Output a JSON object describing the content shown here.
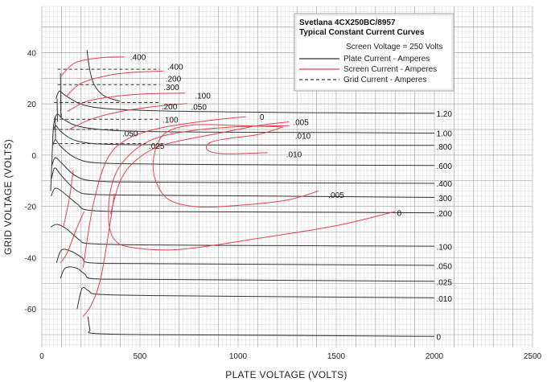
{
  "chart_data": {
    "type": "line",
    "title": "Svetlana 4CX250BC/8957",
    "subtitle": "Typical Constant Current Curves",
    "xlabel": "PLATE VOLTAGE (VOLTS)",
    "ylabel": "GRID VOLTAGE (VOLTS)",
    "xlim": [
      0,
      2500
    ],
    "ylim": [
      -75,
      58
    ],
    "x_ticks": [
      0,
      500,
      1000,
      1500,
      2000,
      2500
    ],
    "y_ticks": [
      40,
      20,
      0,
      -20,
      -40,
      -60
    ],
    "grid": true,
    "legend": {
      "position": "top-right",
      "items": [
        {
          "text": "Screen Voltage = 250 Volts",
          "style": "none"
        },
        {
          "text": "Plate Current - Amperes",
          "style": "solid",
          "color": "#333333"
        },
        {
          "text": "Screen Current - Amperes",
          "style": "solid",
          "color": "#e5404b"
        },
        {
          "text": "Grid Current - Amperes",
          "style": "dashed",
          "color": "#333333"
        }
      ]
    },
    "colors": {
      "plate": "#333333",
      "screen": "#e5404b",
      "grid_current": "#333333",
      "gridlines": "#c8c8c8"
    },
    "plate_current": [
      {
        "name": "1.20",
        "points": [
          [
            72,
            22
          ],
          [
            90,
            25
          ],
          [
            125,
            23
          ],
          [
            240,
            19
          ],
          [
            500,
            17.5
          ],
          [
            1000,
            16.8
          ],
          [
            1500,
            16.5
          ],
          [
            2000,
            16.3
          ]
        ]
      },
      {
        "name": "1.00",
        "points": [
          [
            64,
            14
          ],
          [
            80,
            16
          ],
          [
            110,
            14
          ],
          [
            200,
            11
          ],
          [
            400,
            9.5
          ],
          [
            800,
            9
          ],
          [
            1500,
            8.8
          ],
          [
            2000,
            8.6
          ]
        ]
      },
      {
        "name": ".800",
        "points": [
          [
            60,
            10
          ],
          [
            72,
            11.5
          ],
          [
            100,
            9
          ],
          [
            180,
            5.5
          ],
          [
            350,
            4.2
          ],
          [
            800,
            4
          ],
          [
            2000,
            3.8
          ]
        ]
      },
      {
        "name": ".600",
        "points": [
          [
            56,
            4
          ],
          [
            70,
            6
          ],
          [
            95,
            3.5
          ],
          [
            170,
            -1
          ],
          [
            280,
            -3
          ],
          [
            600,
            -3.5
          ],
          [
            1200,
            -3.8
          ],
          [
            2000,
            -4
          ]
        ]
      },
      {
        "name": ".400",
        "points": [
          [
            52,
            -4
          ],
          [
            68,
            -1
          ],
          [
            100,
            -3
          ],
          [
            170,
            -8
          ],
          [
            260,
            -10
          ],
          [
            500,
            -10.5
          ],
          [
            1200,
            -10.8
          ],
          [
            2000,
            -11
          ]
        ]
      },
      {
        "name": ".300",
        "points": [
          [
            50,
            -9
          ],
          [
            66,
            -5
          ],
          [
            100,
            -8
          ],
          [
            180,
            -14
          ],
          [
            260,
            -15.3
          ],
          [
            500,
            -15.6
          ],
          [
            1200,
            -16
          ],
          [
            2000,
            -16.5
          ]
        ]
      },
      {
        "name": ".200",
        "points": [
          [
            48,
            -16
          ],
          [
            66,
            -13
          ],
          [
            100,
            -14
          ],
          [
            180,
            -19
          ],
          [
            240,
            -21.5
          ],
          [
            500,
            -22
          ],
          [
            1200,
            -22.2
          ],
          [
            2000,
            -22.5
          ]
        ]
      },
      {
        "name": ".100",
        "points": [
          [
            45,
            -28
          ],
          [
            80,
            -27
          ],
          [
            130,
            -29
          ],
          [
            190,
            -33
          ],
          [
            240,
            -34.5
          ],
          [
            500,
            -35
          ],
          [
            1200,
            -35.3
          ],
          [
            2000,
            -35.5
          ]
        ]
      },
      {
        "name": ".050",
        "points": [
          [
            75,
            -42
          ],
          [
            100,
            -37
          ],
          [
            150,
            -37.5
          ],
          [
            205,
            -40
          ],
          [
            245,
            -42
          ],
          [
            500,
            -42.3
          ],
          [
            1200,
            -42.6
          ],
          [
            2000,
            -43
          ]
        ]
      },
      {
        "name": ".025",
        "points": [
          [
            95,
            -48
          ],
          [
            120,
            -44
          ],
          [
            175,
            -44
          ],
          [
            220,
            -46.5
          ],
          [
            260,
            -48.2
          ],
          [
            500,
            -48.4
          ],
          [
            1200,
            -48.8
          ],
          [
            2000,
            -49.2
          ]
        ]
      },
      {
        "name": ".010",
        "points": [
          [
            180,
            -60
          ],
          [
            205,
            -52
          ],
          [
            240,
            -53
          ],
          [
            290,
            -54.3
          ],
          [
            600,
            -54.8
          ],
          [
            1200,
            -55.2
          ],
          [
            2000,
            -55.6
          ]
        ]
      },
      {
        "name": "0",
        "points": [
          [
            235,
            -63
          ],
          [
            245,
            -68
          ],
          [
            260,
            -69.5
          ],
          [
            500,
            -70
          ],
          [
            1200,
            -70.3
          ],
          [
            2000,
            -70.7
          ]
        ]
      }
    ],
    "plate_curve_tail": {
      "points": [
        [
          230,
          41
        ],
        [
          245,
          33
        ],
        [
          270,
          27
        ],
        [
          320,
          23
        ],
        [
          400,
          21
        ]
      ]
    },
    "plate_curve_spikes": [
      {
        "points": [
          [
            95,
            32
          ],
          [
            97,
            16
          ],
          [
            100,
            16
          ]
        ]
      },
      {
        "points": [
          [
            78,
            22
          ],
          [
            80,
            13
          ]
        ]
      },
      {
        "points": [
          [
            68,
            15
          ],
          [
            70,
            6
          ]
        ]
      }
    ],
    "plate_curve_low_start": {
      "points": [
        [
          45,
          -14
        ],
        [
          50,
          -5
        ],
        [
          58,
          10
        ],
        [
          66,
          14
        ]
      ]
    },
    "screen_current": [
      {
        "name": ".400",
        "points": [
          [
            100,
            31
          ],
          [
            170,
            36
          ],
          [
            300,
            38
          ],
          [
            420,
            38.3
          ]
        ]
      },
      {
        "name": ".200",
        "points": [
          [
            125,
            23
          ],
          [
            200,
            28
          ],
          [
            330,
            31
          ],
          [
            450,
            32.2
          ],
          [
            620,
            32.8
          ]
        ]
      },
      {
        "name": ".100",
        "points": [
          [
            130,
            17
          ],
          [
            230,
            21
          ],
          [
            380,
            23
          ],
          [
            560,
            24
          ],
          [
            730,
            24.2
          ]
        ]
      },
      {
        "name": ".050",
        "points": [
          [
            140,
            10
          ],
          [
            250,
            14
          ],
          [
            400,
            17
          ],
          [
            580,
            19
          ],
          [
            740,
            20.1
          ]
        ]
      },
      {
        "name": "0",
        "points": [
          [
            210,
            -44
          ],
          [
            260,
            -20
          ],
          [
            330,
            -2
          ],
          [
            430,
            6
          ],
          [
            600,
            10.5
          ],
          [
            850,
            13.5
          ],
          [
            1040,
            15
          ]
        ]
      },
      {
        "name": ".005",
        "points": [
          [
            350,
            -23
          ],
          [
            400,
            -10
          ],
          [
            480,
            -2
          ],
          [
            620,
            4
          ],
          [
            900,
            8.5
          ],
          [
            1100,
            11.5
          ],
          [
            1260,
            13
          ]
        ]
      },
      {
        "name": ".010",
        "points": [
          [
            1230,
            11
          ],
          [
            1100,
            8
          ],
          [
            950,
            6.5
          ],
          [
            860,
            5
          ],
          [
            840,
            2.3
          ],
          [
            900,
            0.7
          ],
          [
            1020,
            0.6
          ],
          [
            1150,
            1
          ]
        ]
      },
      {
        "name": ".005b",
        "points": [
          [
            1410,
            -14
          ],
          [
            1250,
            -17.5
          ],
          [
            1000,
            -19.6
          ],
          [
            800,
            -20.2
          ],
          [
            650,
            -17.5
          ],
          [
            580,
            -10
          ],
          [
            570,
            -1
          ],
          [
            620,
            8
          ],
          [
            760,
            11.7
          ],
          [
            1010,
            11.5
          ],
          [
            1220,
            11
          ]
        ]
      },
      {
        "name": "0b",
        "points": [
          [
            1800,
            -22
          ],
          [
            1500,
            -27.5
          ],
          [
            1100,
            -32.5
          ],
          [
            700,
            -36.8
          ],
          [
            460,
            -36
          ],
          [
            370,
            -33
          ],
          [
            340,
            -25
          ],
          [
            355,
            -12
          ],
          [
            420,
            -2
          ],
          [
            560,
            6
          ],
          [
            760,
            9.5
          ],
          [
            1000,
            11.1
          ],
          [
            1260,
            11.5
          ]
        ]
      },
      {
        "name": "0c",
        "points": [
          [
            210,
            -63
          ],
          [
            255,
            -58
          ],
          [
            300,
            -48
          ],
          [
            345,
            -28
          ],
          [
            370,
            -15
          ]
        ]
      },
      {
        "name": "0d",
        "points": [
          [
            95,
            -42
          ],
          [
            130,
            -38
          ],
          [
            170,
            -30
          ],
          [
            215,
            -22
          ]
        ]
      },
      {
        "name": "0e",
        "points": [
          [
            110,
            -28
          ],
          [
            140,
            -17
          ],
          [
            160,
            -6
          ]
        ]
      }
    ],
    "grid_current": [
      {
        "name": ".400",
        "points": [
          [
            80,
            33.5
          ],
          [
            600,
            33.5
          ]
        ]
      },
      {
        "name": ".300",
        "points": [
          [
            80,
            27.5
          ],
          [
            600,
            27.5
          ]
        ]
      },
      {
        "name": ".200",
        "points": [
          [
            62,
            20.5
          ],
          [
            600,
            20.5
          ]
        ]
      },
      {
        "name": ".100",
        "points": [
          [
            62,
            14
          ],
          [
            600,
            14
          ]
        ]
      },
      {
        "name": ".050",
        "points": [
          [
            62,
            10
          ],
          [
            390,
            10
          ]
        ]
      },
      {
        "name": ".025",
        "points": [
          [
            60,
            4.5
          ],
          [
            530,
            4.5
          ]
        ]
      }
    ],
    "labels": [
      {
        "text": ".400",
        "x": 450,
        "y": 38.3,
        "series": "screen"
      },
      {
        "text": ".400",
        "x": 640,
        "y": 34.5,
        "series": "grid"
      },
      {
        "text": ".200",
        "x": 630,
        "y": 29.8,
        "series": "screen"
      },
      {
        "text": ".300",
        "x": 620,
        "y": 26.5,
        "series": "grid"
      },
      {
        "text": ".100",
        "x": 780,
        "y": 23.2,
        "series": "screen"
      },
      {
        "text": ".200",
        "x": 610,
        "y": 19.0,
        "series": "grid"
      },
      {
        "text": ".050",
        "x": 760,
        "y": 18.8,
        "series": "screen"
      },
      {
        "text": ".100",
        "x": 615,
        "y": 13.8,
        "series": "grid"
      },
      {
        "text": ".050",
        "x": 410,
        "y": 8.5,
        "series": "grid"
      },
      {
        "text": ".025",
        "x": 545,
        "y": 3.5,
        "series": "grid"
      },
      {
        "text": "0",
        "x": 1110,
        "y": 14.8,
        "series": "screen"
      },
      {
        "text": ".005",
        "x": 1280,
        "y": 12.8,
        "series": "screen"
      },
      {
        "text": ".010",
        "x": 1290,
        "y": 7.5,
        "series": "screen"
      },
      {
        "text": ".010",
        "x": 1245,
        "y": 0.3,
        "series": "screen"
      },
      {
        "text": ".005",
        "x": 1460,
        "y": -15.5,
        "series": "screen"
      },
      {
        "text": "0",
        "x": 1810,
        "y": -22.6,
        "series": "screen"
      },
      {
        "text": "1.20",
        "x": 2010,
        "y": 16.2,
        "series": "plate"
      },
      {
        "text": "1.00",
        "x": 2010,
        "y": 8.5,
        "series": "plate"
      },
      {
        "text": ".800",
        "x": 2010,
        "y": 3.3,
        "series": "plate"
      },
      {
        "text": ".600",
        "x": 2010,
        "y": -4.3,
        "series": "plate"
      },
      {
        "text": ".400",
        "x": 2010,
        "y": -11.1,
        "series": "plate"
      },
      {
        "text": ".300",
        "x": 2010,
        "y": -16.8,
        "series": "plate"
      },
      {
        "text": ".200",
        "x": 2010,
        "y": -22.8,
        "series": "plate"
      },
      {
        "text": ".100",
        "x": 2010,
        "y": -35.8,
        "series": "plate"
      },
      {
        "text": ".050",
        "x": 2010,
        "y": -43.3,
        "series": "plate"
      },
      {
        "text": ".025",
        "x": 2010,
        "y": -49.6,
        "series": "plate"
      },
      {
        "text": ".010",
        "x": 2010,
        "y": -56.0,
        "series": "plate"
      },
      {
        "text": "0",
        "x": 2010,
        "y": -71.0,
        "series": "plate"
      }
    ]
  }
}
